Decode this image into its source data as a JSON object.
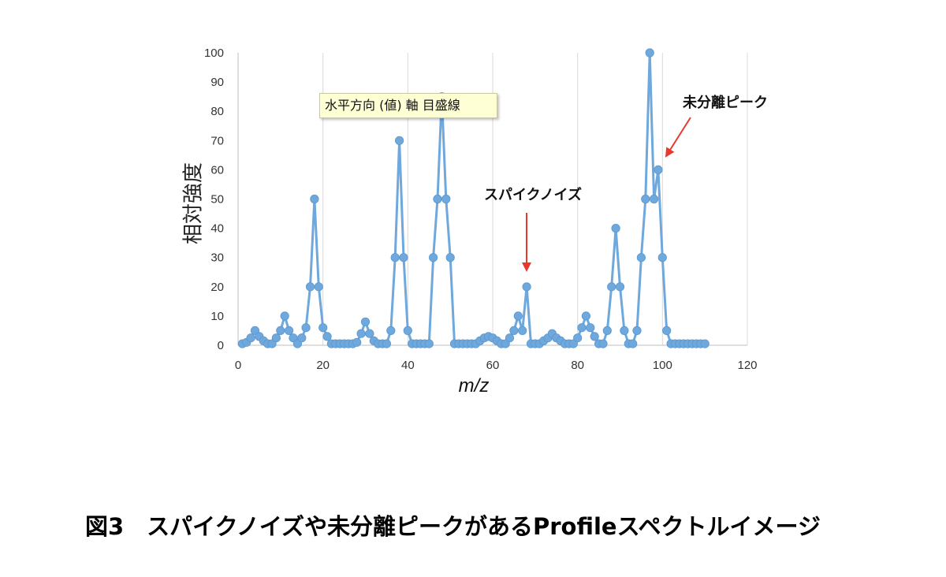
{
  "chart_data": {
    "type": "line",
    "markers": true,
    "title": "",
    "xlabel": "m/z",
    "ylabel": "相対強度",
    "xlim": [
      0,
      120
    ],
    "ylim": [
      0,
      100
    ],
    "xticks": [
      0,
      20,
      40,
      60,
      80,
      100,
      120
    ],
    "yticks": [
      0,
      10,
      20,
      30,
      40,
      50,
      60,
      70,
      80,
      90,
      100
    ],
    "grid": "vertical",
    "legend": "none",
    "series": [
      {
        "color": "#6fa8dc",
        "points": [
          [
            1,
            0.5
          ],
          [
            2,
            1
          ],
          [
            3,
            2.5
          ],
          [
            4,
            5
          ],
          [
            5,
            3
          ],
          [
            6,
            1.5
          ],
          [
            7,
            0.5
          ],
          [
            8,
            0.5
          ],
          [
            9,
            2.5
          ],
          [
            10,
            5
          ],
          [
            11,
            10
          ],
          [
            12,
            5
          ],
          [
            13,
            2.5
          ],
          [
            14,
            0.5
          ],
          [
            15,
            2.5
          ],
          [
            16,
            6
          ],
          [
            17,
            20
          ],
          [
            18,
            50
          ],
          [
            19,
            20
          ],
          [
            20,
            6
          ],
          [
            21,
            3
          ],
          [
            22,
            0.5
          ],
          [
            23,
            0.5
          ],
          [
            24,
            0.5
          ],
          [
            25,
            0.5
          ],
          [
            26,
            0.5
          ],
          [
            27,
            0.5
          ],
          [
            28,
            1
          ],
          [
            29,
            4
          ],
          [
            30,
            8
          ],
          [
            31,
            4
          ],
          [
            32,
            1.5
          ],
          [
            33,
            0.5
          ],
          [
            34,
            0.5
          ],
          [
            35,
            0.5
          ],
          [
            36,
            5
          ],
          [
            37,
            30
          ],
          [
            38,
            70
          ],
          [
            39,
            30
          ],
          [
            40,
            5
          ],
          [
            41,
            0.5
          ],
          [
            42,
            0.5
          ],
          [
            43,
            0.5
          ],
          [
            44,
            0.5
          ],
          [
            45,
            0.5
          ],
          [
            46,
            30
          ],
          [
            47,
            50
          ],
          [
            48,
            85
          ],
          [
            49,
            50
          ],
          [
            50,
            30
          ],
          [
            51,
            0.5
          ],
          [
            52,
            0.5
          ],
          [
            53,
            0.5
          ],
          [
            54,
            0.5
          ],
          [
            55,
            0.5
          ],
          [
            56,
            0.5
          ],
          [
            57,
            1.5
          ],
          [
            58,
            2.5
          ],
          [
            59,
            3
          ],
          [
            60,
            2.5
          ],
          [
            61,
            1.5
          ],
          [
            62,
            0.5
          ],
          [
            63,
            0.5
          ],
          [
            64,
            2.5
          ],
          [
            65,
            5
          ],
          [
            66,
            10
          ],
          [
            67,
            5
          ],
          [
            68,
            20
          ],
          [
            69,
            0.5
          ],
          [
            70,
            0.5
          ],
          [
            71,
            0.5
          ],
          [
            72,
            1.5
          ],
          [
            73,
            2.5
          ],
          [
            74,
            4
          ],
          [
            75,
            2.5
          ],
          [
            76,
            1.5
          ],
          [
            77,
            0.5
          ],
          [
            78,
            0.5
          ],
          [
            79,
            0.5
          ],
          [
            80,
            2.5
          ],
          [
            81,
            6
          ],
          [
            82,
            10
          ],
          [
            83,
            6
          ],
          [
            84,
            3
          ],
          [
            85,
            0.5
          ],
          [
            86,
            0.5
          ],
          [
            87,
            5
          ],
          [
            88,
            20
          ],
          [
            89,
            40
          ],
          [
            90,
            20
          ],
          [
            91,
            5
          ],
          [
            92,
            0.5
          ],
          [
            93,
            0.5
          ],
          [
            94,
            5
          ],
          [
            95,
            30
          ],
          [
            96,
            50
          ],
          [
            97,
            100
          ],
          [
            98,
            50
          ],
          [
            99,
            60
          ],
          [
            100,
            30
          ],
          [
            101,
            5
          ],
          [
            102,
            0.5
          ],
          [
            103,
            0.5
          ],
          [
            104,
            0.5
          ],
          [
            105,
            0.5
          ],
          [
            106,
            0.5
          ],
          [
            107,
            0.5
          ],
          [
            108,
            0.5
          ],
          [
            109,
            0.5
          ],
          [
            110,
            0.5
          ]
        ]
      }
    ],
    "annotations": [
      {
        "text": "スパイクノイズ",
        "target": [
          68,
          20
        ],
        "arrow_color": "#e8392d"
      },
      {
        "text": "未分離ピーク",
        "target": [
          99,
          60
        ],
        "arrow_color": "#e8392d"
      }
    ]
  },
  "tooltip": "水平方向 (値) 軸 目盛線",
  "caption": "図3　スパイクノイズや未分離ピークがあるProfileスペクトルイメージ"
}
